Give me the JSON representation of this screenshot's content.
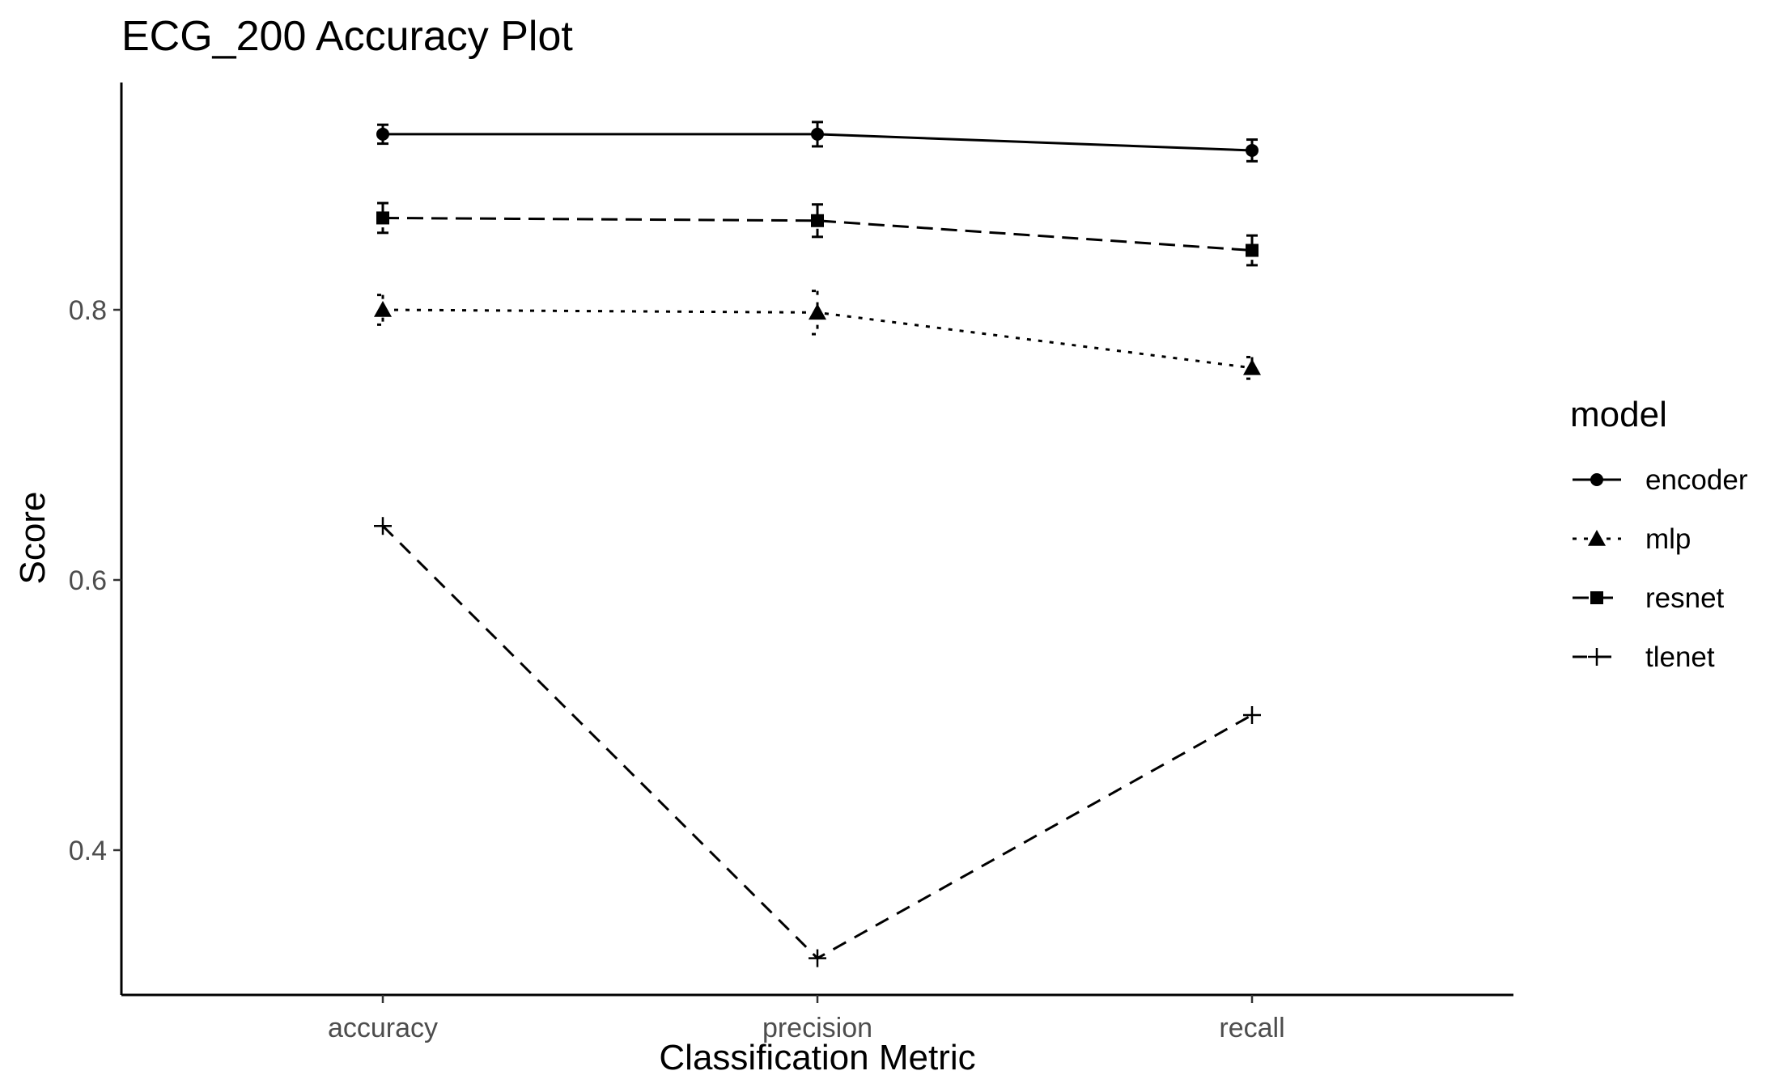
{
  "chart_data": {
    "type": "line",
    "title": "ECG_200 Accuracy Plot",
    "xlabel": "Classification Metric",
    "ylabel": "Score",
    "categories": [
      "accuracy",
      "precision",
      "recall"
    ],
    "yticks": [
      0.4,
      0.6,
      0.8
    ],
    "ytick_labels": [
      "0.4",
      "0.6",
      "0.8"
    ],
    "ylim": [
      0.29,
      0.97
    ],
    "grid": false,
    "legend": {
      "title": "model",
      "placement": "right"
    },
    "series": [
      {
        "name": "encoder",
        "marker": "circle",
        "linetype": "solid",
        "values": [
          0.93,
          0.93,
          0.918
        ],
        "errors": [
          0.007,
          0.009,
          0.008
        ]
      },
      {
        "name": "mlp",
        "marker": "triangle",
        "linetype": "dotted",
        "values": [
          0.8,
          0.798,
          0.757
        ],
        "errors": [
          0.011,
          0.016,
          0.008
        ]
      },
      {
        "name": "resnet",
        "marker": "square",
        "linetype": "dashed",
        "values": [
          0.868,
          0.866,
          0.844
        ],
        "errors": [
          0.011,
          0.012,
          0.011
        ]
      },
      {
        "name": "tlenet",
        "marker": "cross",
        "linetype": "longdash",
        "values": [
          0.64,
          0.32,
          0.5
        ],
        "errors": [
          0,
          0,
          0
        ]
      }
    ]
  }
}
